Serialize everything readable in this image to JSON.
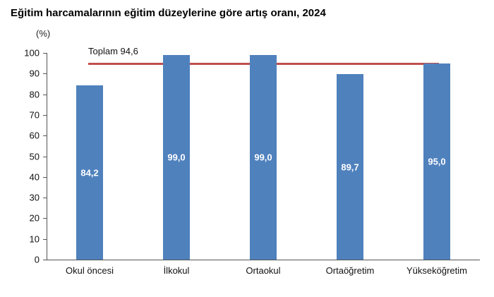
{
  "title": "Eğitim harcamalarının eğitim düzeylerine göre artış oranı, 2024",
  "unit": "(%)",
  "reference": {
    "label": "Toplam 94,6",
    "value": 94.6,
    "color": "#c0504d"
  },
  "y_ticks": [
    "0",
    "10",
    "20",
    "30",
    "40",
    "50",
    "60",
    "70",
    "80",
    "90",
    "100"
  ],
  "bars": [
    {
      "category": "Okul öncesi",
      "value": 84.2,
      "label": "84,2"
    },
    {
      "category": "İlkokul",
      "value": 99.0,
      "label": "99,0"
    },
    {
      "category": "Ortaokul",
      "value": 99.0,
      "label": "99,0"
    },
    {
      "category": "Ortaöğretim",
      "value": 89.7,
      "label": "89,7"
    },
    {
      "category": "Yükseköğretim",
      "value": 95.0,
      "label": "95,0"
    }
  ],
  "colors": {
    "bar": "#4f81bd",
    "line": "#c0504d"
  },
  "chart_data": {
    "type": "bar",
    "title": "Eğitim harcamalarının eğitim düzeylerine göre artış oranı, 2024",
    "categories": [
      "Okul öncesi",
      "İlkokul",
      "Ortaokul",
      "Ortaöğretim",
      "Yükseköğretim"
    ],
    "values": [
      84.2,
      99.0,
      99.0,
      89.7,
      95.0
    ],
    "data_labels": [
      "84,2",
      "99,0",
      "99,0",
      "89,7",
      "95,0"
    ],
    "reference_line": {
      "label": "Toplam 94,6",
      "value": 94.6
    },
    "xlabel": "",
    "ylabel": "(%)",
    "ylim": [
      0,
      100
    ],
    "yticks": [
      0,
      10,
      20,
      30,
      40,
      50,
      60,
      70,
      80,
      90,
      100
    ],
    "grid": false,
    "legend": "none"
  }
}
